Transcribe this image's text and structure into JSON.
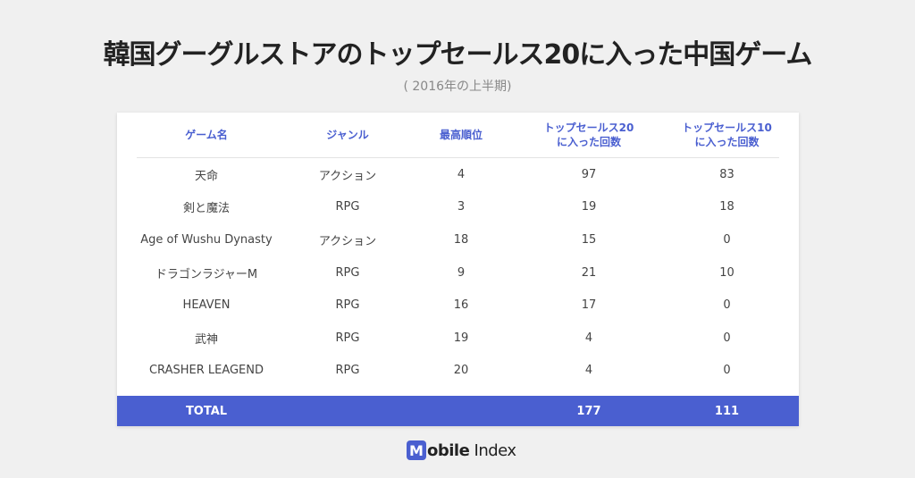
{
  "title": "韓国グーグルストアのトップセールス20に入った中国ゲーム",
  "subtitle": "( 2016年の上半期)",
  "chart_data": {
    "type": "table",
    "columns": [
      "ゲーム名",
      "ジャンル",
      "最高順位",
      "トップセールス20\nに入った回数",
      "トップセールス10\nに入った回数"
    ],
    "rows": [
      [
        "天命",
        "アクション",
        "4",
        "97",
        "83"
      ],
      [
        "剣と魔法",
        "RPG",
        "3",
        "19",
        "18"
      ],
      [
        "Age of Wushu Dynasty",
        "アクション",
        "18",
        "15",
        "0"
      ],
      [
        "ドラゴンラジャーM",
        "RPG",
        "9",
        "21",
        "10"
      ],
      [
        "HEAVEN",
        "RPG",
        "16",
        "17",
        "0"
      ],
      [
        "武神",
        "RPG",
        "19",
        "4",
        "0"
      ],
      [
        "CRASHER LEAGEND",
        "RPG",
        "20",
        "4",
        "0"
      ]
    ],
    "total": [
      "TOTAL",
      "",
      "",
      "177",
      "111"
    ]
  },
  "logo": {
    "mark": "M",
    "word1": "obile",
    "word2": " Index"
  },
  "colors": {
    "accent": "#4a5fd0",
    "background": "#f0f0f0"
  }
}
